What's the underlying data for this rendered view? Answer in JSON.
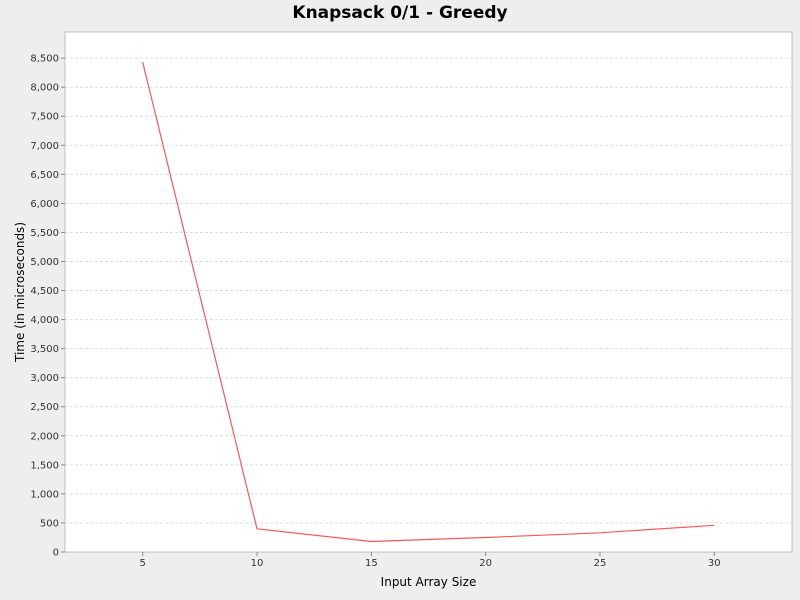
{
  "chart_data": {
    "type": "line",
    "title": "Knapsack 0/1 - Greedy",
    "xlabel": "Input Array Size",
    "ylabel": "Time (in microseconds)",
    "x": [
      5,
      10,
      15,
      20,
      25,
      30
    ],
    "series": [
      {
        "values": [
          8430,
          400,
          180,
          250,
          330,
          460
        ],
        "color": "#ff5555"
      }
    ],
    "xlim": [
      1.6,
      33.4
    ],
    "ylim": [
      0,
      8950
    ],
    "x_ticks": [
      "5",
      "10",
      "15",
      "20",
      "25",
      "30"
    ],
    "y_ticks": [
      "0",
      "500",
      "1,000",
      "1,500",
      "2,000",
      "2,500",
      "3,000",
      "3,500",
      "4,000",
      "4,500",
      "5,000",
      "5,500",
      "6,000",
      "6,500",
      "7,000",
      "7,500",
      "8,000",
      "8,500"
    ],
    "grid": true,
    "legend": "none",
    "plot_background": "#ffffff",
    "page_background": "#eeeeee",
    "grid_color": "#dddddd"
  }
}
